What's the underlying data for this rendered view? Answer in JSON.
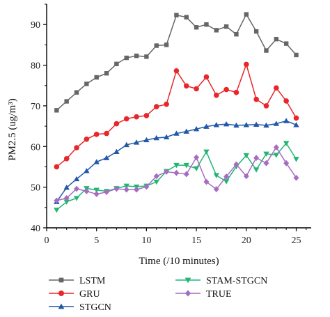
{
  "chart_data": {
    "type": "line",
    "title": "",
    "xlabel": "Time (/10 minutes)",
    "ylabel": "PM2.5 (ug/m³)",
    "xlim": [
      0,
      26.5
    ],
    "ylim": [
      40,
      95
    ],
    "xticks": [
      0,
      5,
      10,
      15,
      20,
      25
    ],
    "yticks": [
      40,
      50,
      60,
      70,
      80,
      90
    ],
    "grid": false,
    "legend_position": "bottom",
    "x": [
      1,
      2,
      3,
      4,
      5,
      6,
      7,
      8,
      9,
      10,
      11,
      12,
      13,
      14,
      15,
      16,
      17,
      18,
      19,
      20,
      21,
      22,
      23,
      24,
      25
    ],
    "series": [
      {
        "name": "LSTM",
        "color": "#666666",
        "marker": "square",
        "values": [
          68.9,
          71.1,
          73.3,
          75.4,
          77.0,
          78.0,
          80.3,
          81.8,
          82.3,
          82.1,
          84.8,
          85.0,
          92.3,
          91.8,
          89.3,
          90.0,
          88.6,
          89.5,
          87.6,
          92.5,
          88.3,
          83.6,
          86.4,
          85.3,
          82.5
        ]
      },
      {
        "name": "GRU",
        "color": "#e8272a",
        "marker": "circle",
        "values": [
          55.0,
          57.0,
          59.7,
          61.8,
          63.0,
          63.2,
          65.6,
          66.8,
          67.3,
          67.6,
          69.8,
          70.4,
          78.6,
          74.9,
          74.2,
          77.1,
          72.6,
          74.0,
          73.3,
          80.2,
          71.6,
          70.0,
          74.4,
          71.2,
          67.0
        ]
      },
      {
        "name": "STGCN",
        "color": "#2158a7",
        "marker": "triangle-up",
        "values": [
          46.4,
          49.9,
          52.0,
          54.0,
          56.2,
          57.2,
          58.7,
          60.4,
          61.0,
          61.6,
          62.1,
          62.3,
          63.2,
          63.7,
          64.3,
          64.9,
          65.3,
          65.5,
          65.2,
          65.3,
          65.4,
          65.2,
          65.6,
          66.3,
          65.3
        ]
      },
      {
        "name": "STAM-STGCN",
        "color": "#22b573",
        "marker": "triangle-down",
        "values": [
          44.4,
          46.4,
          47.3,
          49.7,
          49.3,
          49.0,
          49.7,
          50.3,
          50.1,
          50.3,
          51.3,
          53.9,
          55.4,
          55.4,
          54.6,
          58.7,
          52.9,
          51.4,
          55.1,
          57.8,
          54.3,
          58.2,
          57.9,
          60.8,
          56.9
        ]
      },
      {
        "name": "TRUE",
        "color": "#a66cc2",
        "marker": "diamond",
        "values": [
          46.7,
          47.3,
          49.6,
          49.0,
          48.3,
          48.8,
          49.6,
          49.4,
          49.4,
          50.1,
          52.7,
          53.8,
          53.5,
          53.2,
          57.3,
          51.3,
          49.5,
          52.6,
          55.6,
          52.7,
          57.2,
          55.9,
          59.8,
          55.9,
          52.3
        ]
      }
    ]
  }
}
